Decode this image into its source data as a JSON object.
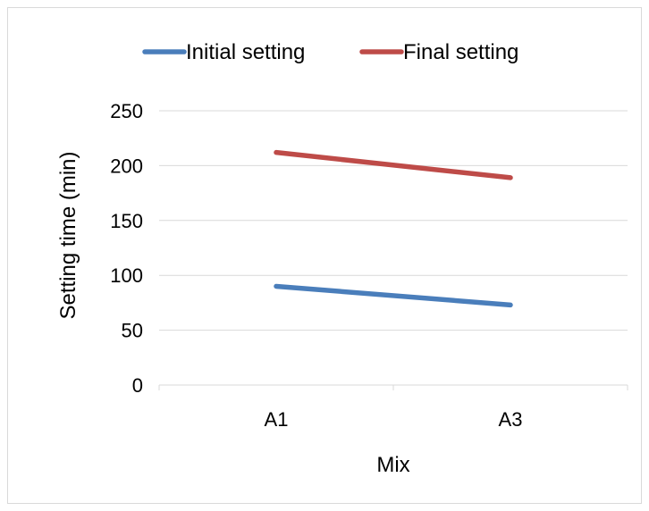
{
  "chart_data": {
    "type": "line",
    "title": "",
    "xlabel": "Mix",
    "ylabel": "Setting time (min)",
    "categories": [
      "A1",
      "A3"
    ],
    "ylim": [
      0,
      250
    ],
    "yticks": [
      0,
      50,
      100,
      150,
      200,
      250
    ],
    "grid": true,
    "legend_position": "top",
    "series": [
      {
        "name": "Initial setting",
        "values": [
          90,
          73
        ],
        "color": "#4a7ebb"
      },
      {
        "name": "Final setting",
        "values": [
          212,
          189
        ],
        "color": "#be4b48"
      }
    ]
  }
}
